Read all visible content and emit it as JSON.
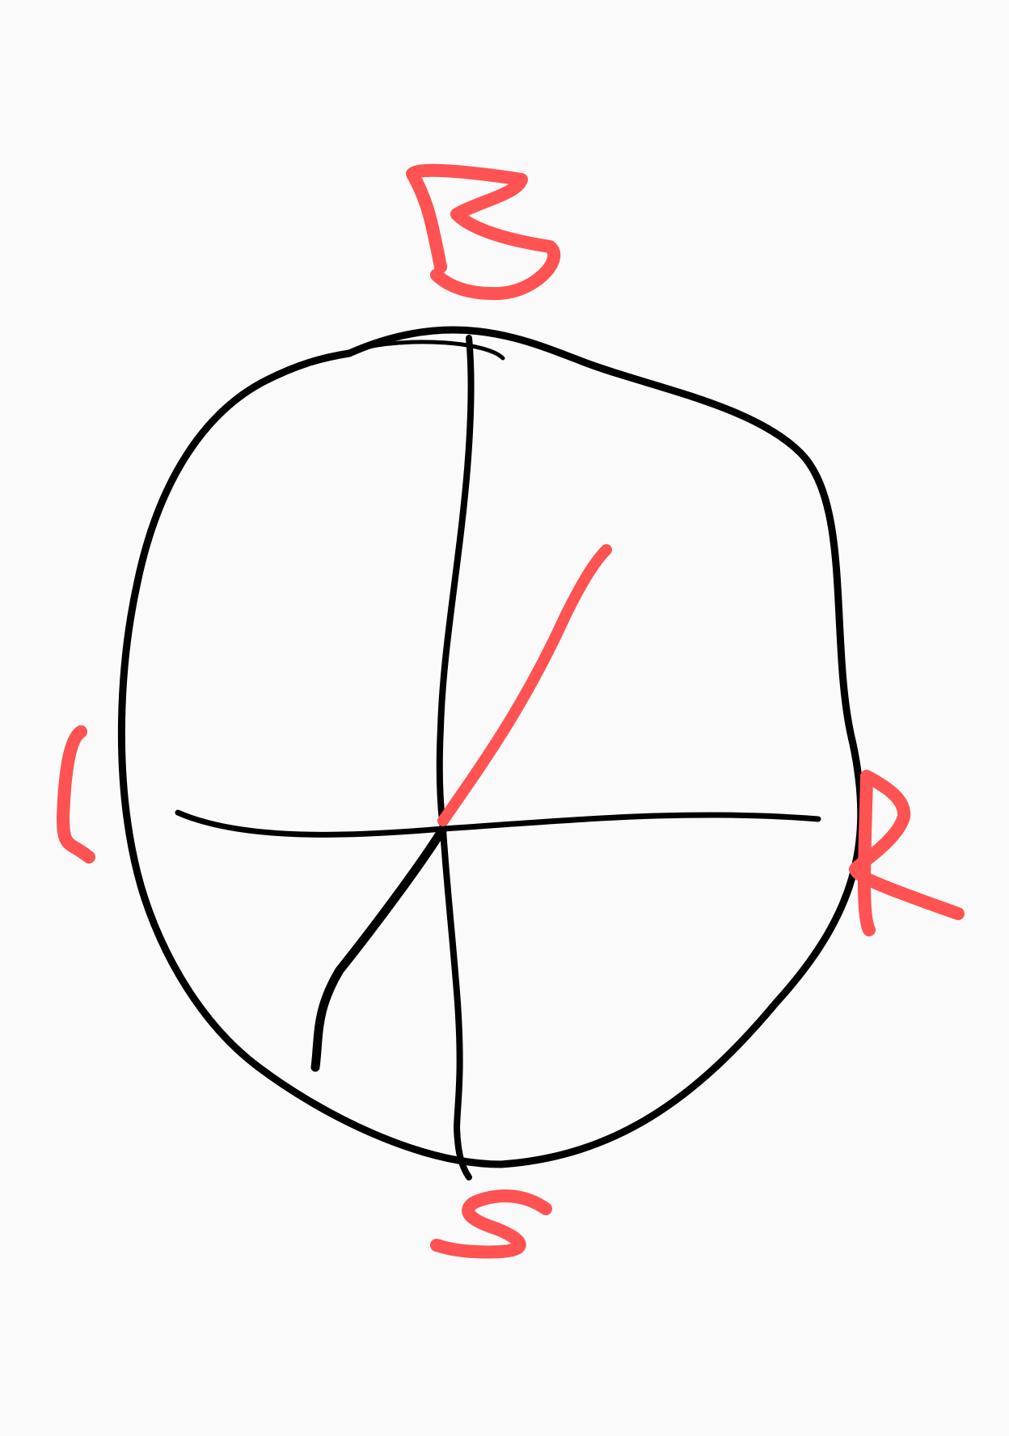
{
  "drawing": {
    "background_color": "#fafafa",
    "ink_color": "#000000",
    "accent_color": "#ff5252",
    "shapes": [
      "wobbly-circle",
      "vertical-axis-line",
      "horizontal-axis-line",
      "diagonal-line",
      "red-diagonal-stroke"
    ],
    "handwritten_letters": [
      "B",
      "L",
      "R",
      "S"
    ]
  }
}
